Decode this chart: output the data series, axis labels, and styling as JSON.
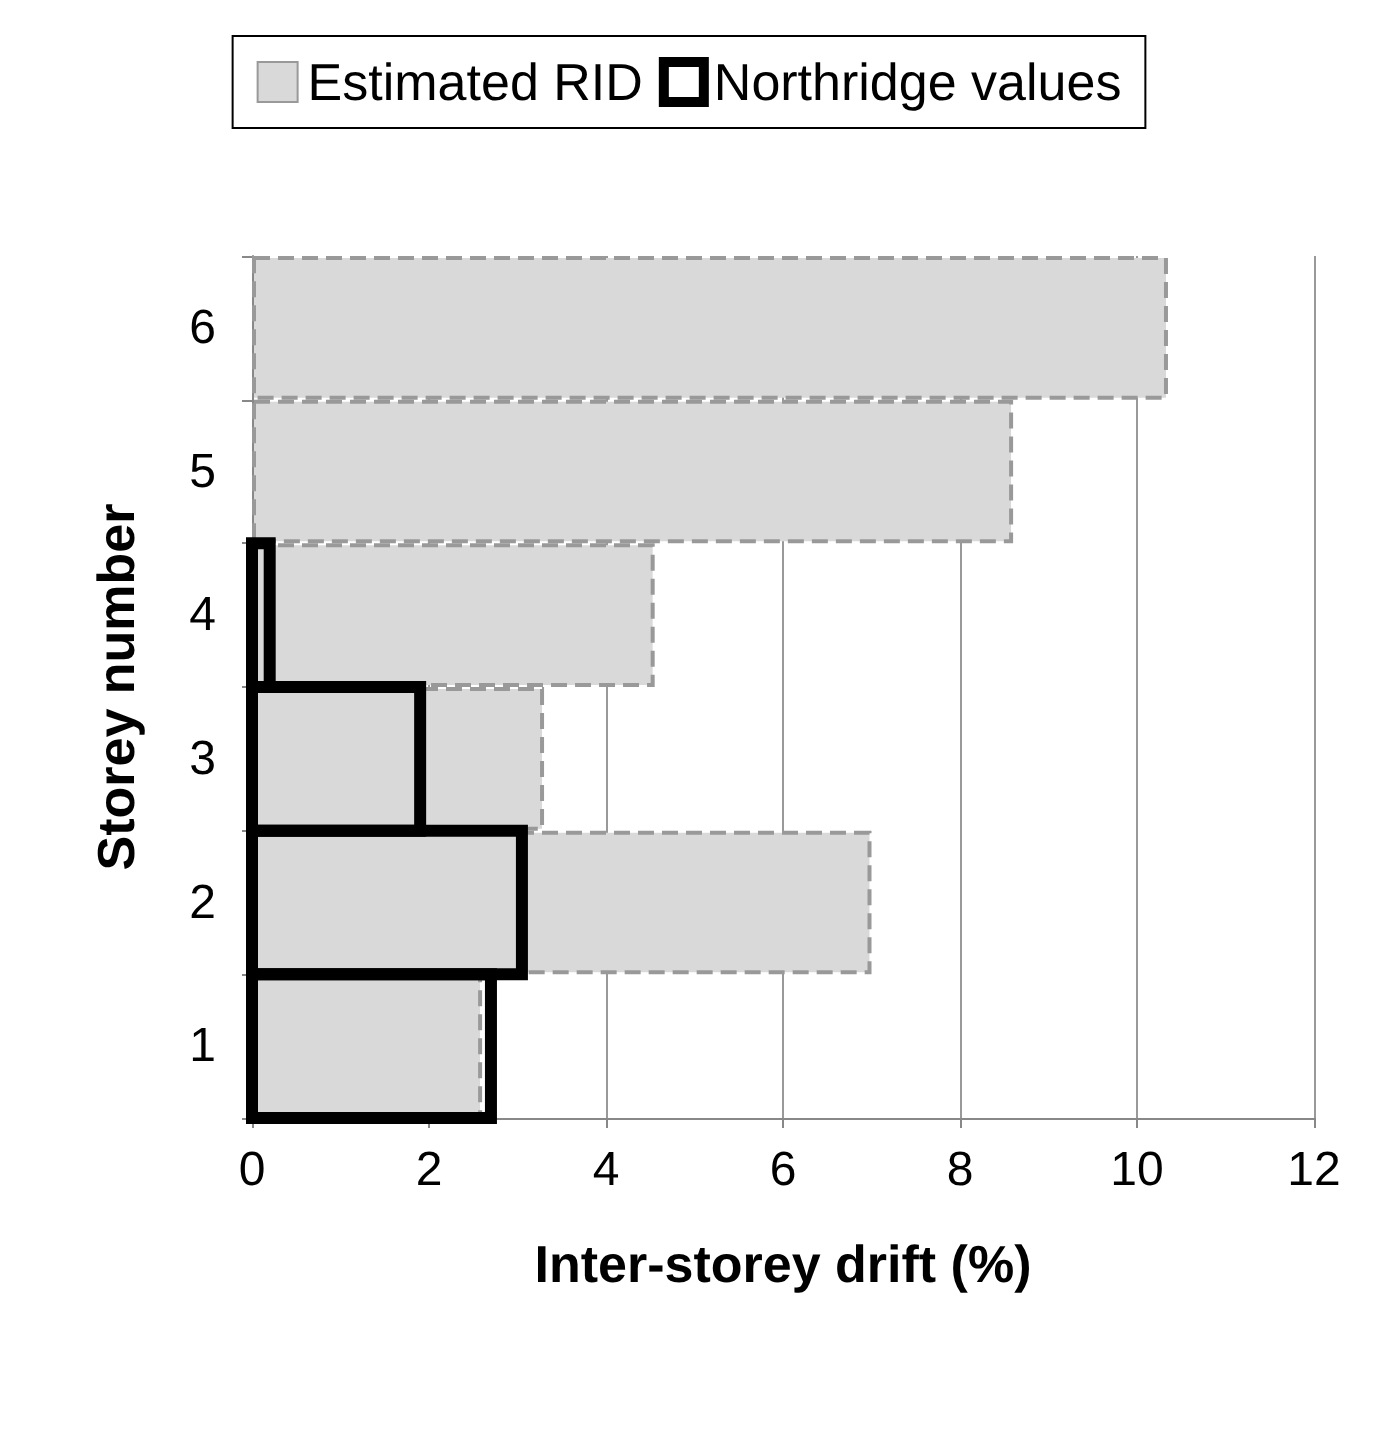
{
  "chart_data": {
    "type": "bar",
    "orientation": "horizontal",
    "xlabel": "Inter-storey drift (%)",
    "ylabel": "Storey number",
    "categories": [
      "6",
      "5",
      "4",
      "3",
      "2",
      "1"
    ],
    "series": [
      {
        "name": "Estimated RID",
        "color": "#d9d9d9",
        "values": [
          10.35,
          8.6,
          4.55,
          3.3,
          7.0,
          2.6
        ]
      },
      {
        "name": "Northridge values",
        "color": "#000000",
        "values": [
          null,
          null,
          0.2,
          1.9,
          3.05,
          2.7
        ]
      }
    ],
    "xlim": [
      0,
      12
    ],
    "xticks": [
      0,
      2,
      4,
      6,
      8,
      10,
      12
    ],
    "grid": "x",
    "legend": "top"
  }
}
